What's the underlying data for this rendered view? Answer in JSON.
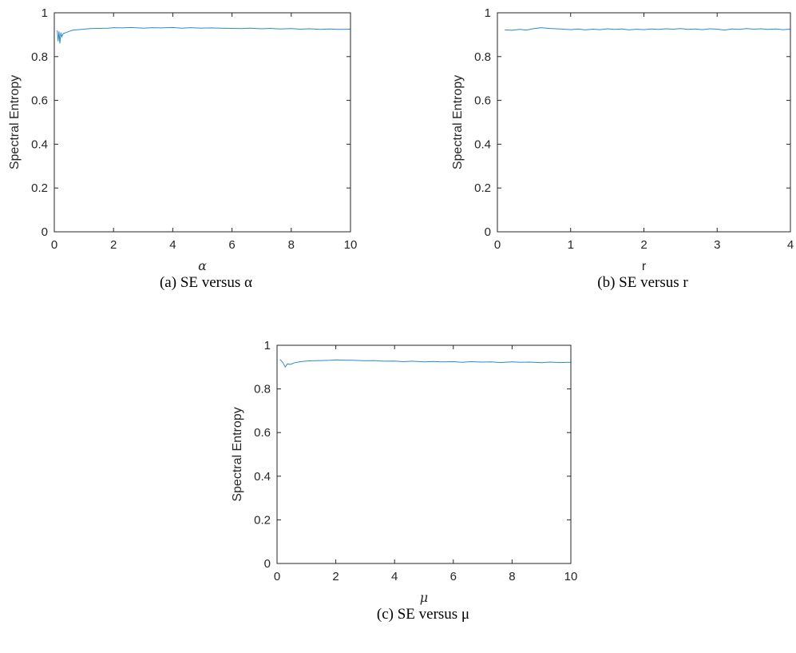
{
  "colors": {
    "line": "#2b8cc9",
    "axes": "#262626",
    "background": "#ffffff"
  },
  "chart_data": [
    {
      "id": "a",
      "type": "line",
      "caption": "(a) SE versus α",
      "xlabel": "α",
      "ylabel": "Spectral Entropy",
      "xlim": [
        0,
        10
      ],
      "ylim": [
        0,
        1
      ],
      "xticks": [
        0,
        2,
        4,
        6,
        8,
        10
      ],
      "yticks": [
        0,
        0.2,
        0.4,
        0.6,
        0.8,
        1
      ],
      "grid": false,
      "legend": "none",
      "series": [
        {
          "x": [
            0.1,
            0.13,
            0.16,
            0.19,
            0.22,
            0.25,
            0.3,
            0.4,
            0.5,
            0.6,
            0.8,
            1.0,
            1.2,
            1.5,
            1.8,
            2.0,
            2.3,
            2.6,
            3.0,
            3.3,
            3.6,
            4.0,
            4.3,
            4.6,
            5.0,
            5.3,
            5.6,
            6.0,
            6.3,
            6.6,
            7.0,
            7.3,
            7.6,
            8.0,
            8.3,
            8.6,
            9.0,
            9.3,
            9.6,
            10.0
          ],
          "y": [
            0.92,
            0.87,
            0.915,
            0.86,
            0.91,
            0.89,
            0.905,
            0.91,
            0.915,
            0.92,
            0.923,
            0.925,
            0.928,
            0.929,
            0.93,
            0.932,
            0.931,
            0.933,
            0.93,
            0.932,
            0.931,
            0.933,
            0.93,
            0.932,
            0.93,
            0.931,
            0.93,
            0.929,
            0.928,
            0.93,
            0.927,
            0.929,
            0.926,
            0.928,
            0.925,
            0.927,
            0.924,
            0.926,
            0.924,
            0.925
          ]
        }
      ]
    },
    {
      "id": "b",
      "type": "line",
      "caption": "(b) SE versus r",
      "xlabel": "r",
      "ylabel": "Spectral Entropy",
      "xlim": [
        0,
        4
      ],
      "ylim": [
        0,
        1
      ],
      "xticks": [
        0,
        1,
        2,
        3,
        4
      ],
      "yticks": [
        0,
        0.2,
        0.4,
        0.6,
        0.8,
        1
      ],
      "grid": false,
      "legend": "none",
      "series": [
        {
          "x": [
            0.1,
            0.2,
            0.3,
            0.4,
            0.5,
            0.6,
            0.7,
            0.8,
            0.9,
            1.0,
            1.1,
            1.2,
            1.3,
            1.4,
            1.5,
            1.6,
            1.7,
            1.8,
            1.9,
            2.0,
            2.1,
            2.2,
            2.3,
            2.4,
            2.5,
            2.6,
            2.7,
            2.8,
            2.9,
            3.0,
            3.1,
            3.2,
            3.3,
            3.4,
            3.5,
            3.6,
            3.7,
            3.8,
            3.9,
            4.0
          ],
          "y": [
            0.922,
            0.92,
            0.924,
            0.921,
            0.928,
            0.932,
            0.929,
            0.927,
            0.925,
            0.923,
            0.926,
            0.922,
            0.925,
            0.923,
            0.927,
            0.924,
            0.926,
            0.922,
            0.925,
            0.923,
            0.926,
            0.924,
            0.927,
            0.925,
            0.928,
            0.924,
            0.926,
            0.923,
            0.927,
            0.925,
            0.921,
            0.926,
            0.924,
            0.928,
            0.925,
            0.927,
            0.924,
            0.926,
            0.923,
            0.925
          ]
        }
      ]
    },
    {
      "id": "c",
      "type": "line",
      "caption": "(c) SE versus μ",
      "xlabel": "μ",
      "ylabel": "Spectral Entropy",
      "xlim": [
        0,
        10
      ],
      "ylim": [
        0,
        1
      ],
      "xticks": [
        0,
        2,
        4,
        6,
        8,
        10
      ],
      "yticks": [
        0,
        0.2,
        0.4,
        0.6,
        0.8,
        1
      ],
      "grid": false,
      "legend": "none",
      "series": [
        {
          "x": [
            0.1,
            0.2,
            0.28,
            0.35,
            0.45,
            0.6,
            0.8,
            1.0,
            1.2,
            1.5,
            1.8,
            2.0,
            2.3,
            2.6,
            3.0,
            3.3,
            3.6,
            4.0,
            4.3,
            4.6,
            5.0,
            5.3,
            5.6,
            6.0,
            6.3,
            6.6,
            7.0,
            7.3,
            7.6,
            8.0,
            8.3,
            8.6,
            9.0,
            9.3,
            9.6,
            10.0
          ],
          "y": [
            0.935,
            0.92,
            0.9,
            0.915,
            0.912,
            0.92,
            0.925,
            0.928,
            0.929,
            0.93,
            0.931,
            0.933,
            0.932,
            0.931,
            0.929,
            0.93,
            0.927,
            0.928,
            0.925,
            0.927,
            0.924,
            0.926,
            0.924,
            0.925,
            0.922,
            0.925,
            0.923,
            0.924,
            0.921,
            0.924,
            0.922,
            0.923,
            0.92,
            0.923,
            0.921,
            0.922
          ]
        }
      ]
    }
  ]
}
